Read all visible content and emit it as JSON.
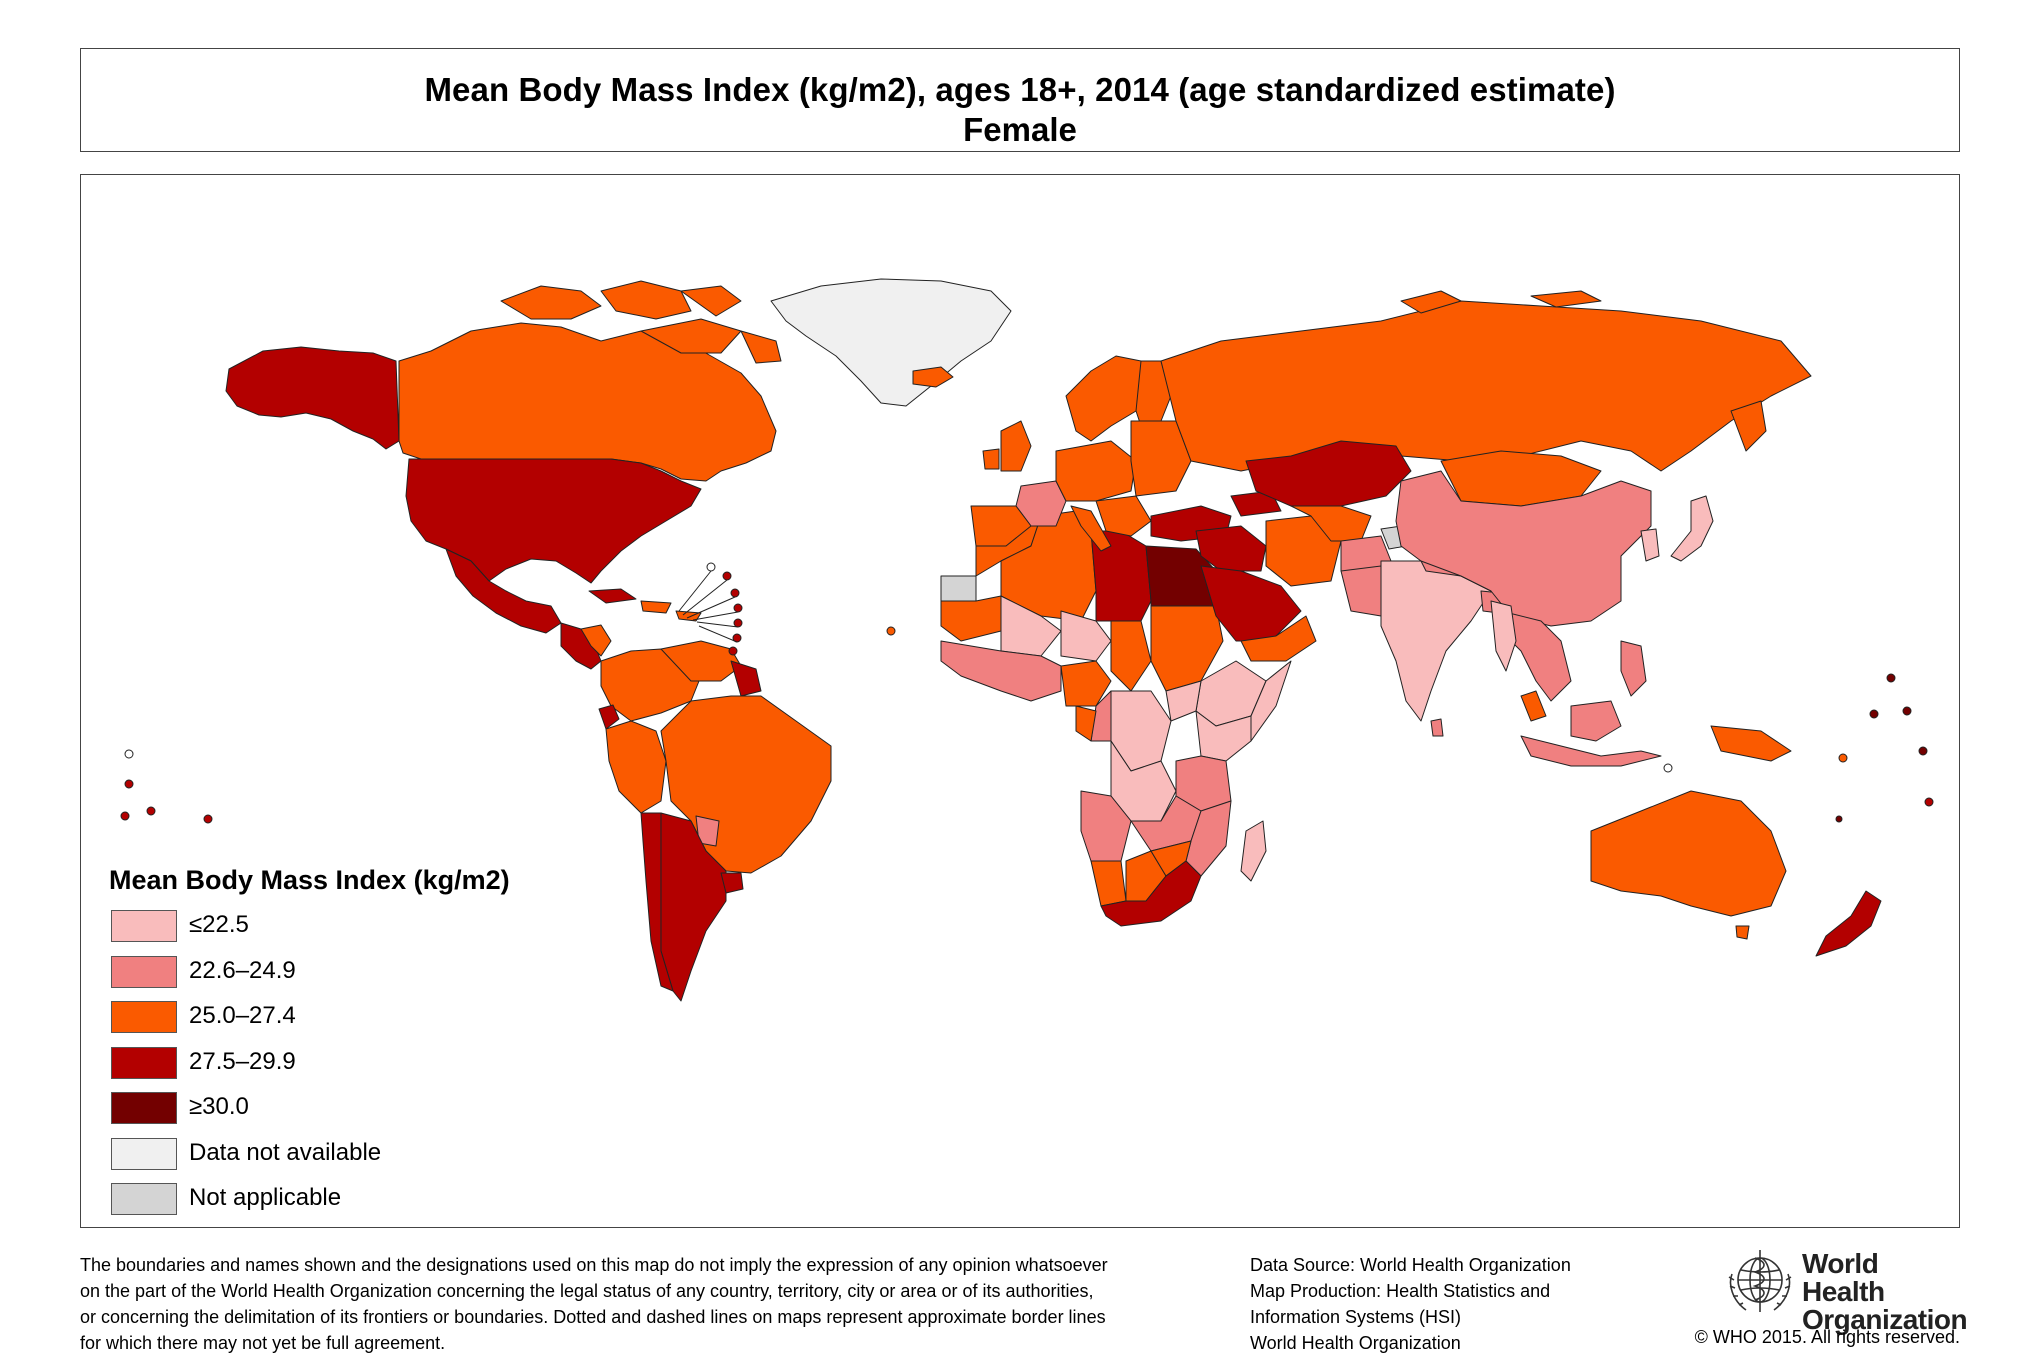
{
  "title": {
    "line1": "Mean Body Mass Index (kg/m2), ages 18+, 2014 (age standardized estimate)",
    "line2": "Female"
  },
  "legend": {
    "title": "Mean Body Mass Index (kg/m2)",
    "items": [
      {
        "label": "≤22.5",
        "color": "#f9bcbc"
      },
      {
        "label": "22.6–24.9",
        "color": "#f08080"
      },
      {
        "label": "25.0–27.4",
        "color": "#fa5a00"
      },
      {
        "label": "27.5–29.9",
        "color": "#b30000"
      },
      {
        "label": "≥30.0",
        "color": "#730000"
      },
      {
        "label": "Data not available",
        "color": "#f0f0f0"
      },
      {
        "label": "Not applicable",
        "color": "#d4d4d4"
      }
    ]
  },
  "footer": {
    "disclaimer_lines": [
      "The boundaries and names shown and the designations used on this map do not imply the expression of any opinion whatsoever",
      "on the part of the World Health Organization concerning the legal status of any country, territory, city or area or of its authorities,",
      "or concerning the delimitation of its frontiers or boundaries. Dotted and dashed lines on maps represent approximate border lines",
      "for which there may not yet be full agreement."
    ],
    "source_lines": [
      "Data Source: World Health Organization",
      "Map Production: Health Statistics and",
      "Information Systems (HSI)",
      "World Health Organization"
    ],
    "who_name_line1": "World Health",
    "who_name_line2": "Organization",
    "copyright": "© WHO 2015. All rights reserved."
  },
  "colors": {
    "le_22_5": "#f9bcbc",
    "r_22_6_24_9": "#f08080",
    "r_25_0_27_4": "#fa5a00",
    "r_27_5_29_9": "#b30000",
    "ge_30_0": "#730000",
    "data_not_available": "#f0f0f0",
    "not_applicable": "#d4d4d4"
  }
}
